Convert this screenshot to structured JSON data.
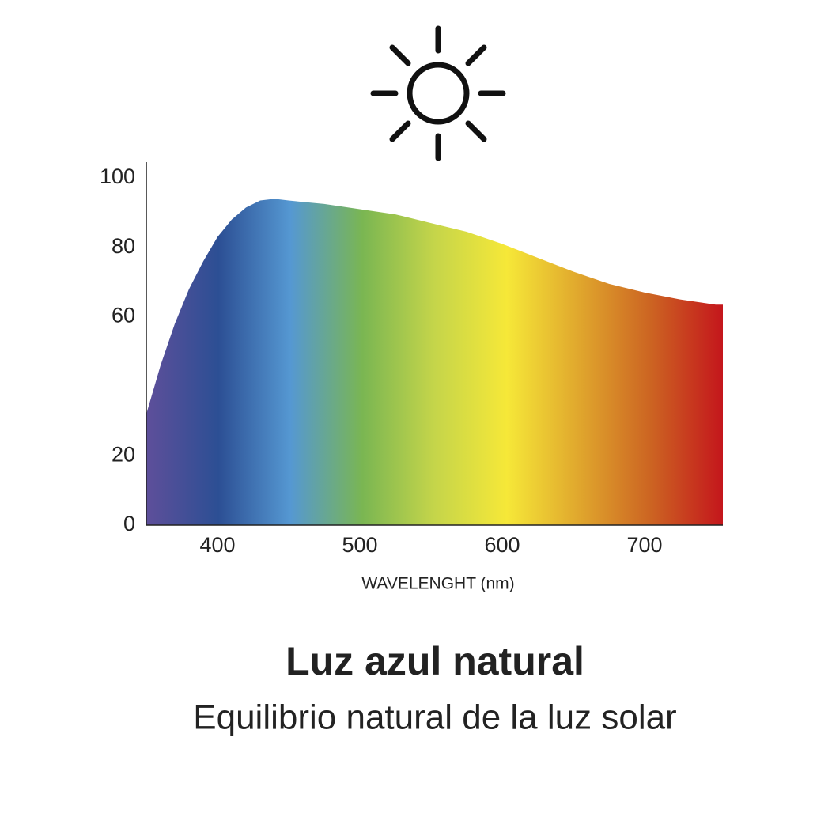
{
  "chart_data": {
    "type": "area",
    "title": "Luz azul natural",
    "subtitle": "Equilibrio natural de la luz solar",
    "x_label": "WAVELENGHT (nm)",
    "x": [
      350,
      360,
      370,
      380,
      390,
      400,
      410,
      420,
      430,
      440,
      450,
      475,
      500,
      525,
      550,
      575,
      600,
      625,
      650,
      675,
      700,
      725,
      750,
      755
    ],
    "values": [
      32,
      46,
      58,
      68,
      76,
      83,
      88,
      91.5,
      93.5,
      94,
      93.5,
      92.5,
      91,
      89.5,
      87,
      84.5,
      81,
      77,
      73,
      69.5,
      67,
      65,
      63.5,
      63.5
    ],
    "gradient": [
      "#5e4f9a",
      "#2c4f94",
      "#5598d2",
      "#7ab652",
      "#c5d54a",
      "#f6e838",
      "#e0a72d",
      "#cc6422",
      "#c4161c"
    ],
    "xlim": [
      350,
      755
    ],
    "xticks": [
      400,
      500,
      600,
      700
    ],
    "ylim": [
      0,
      100
    ],
    "yticks": [
      0,
      20,
      60,
      80,
      100
    ]
  }
}
